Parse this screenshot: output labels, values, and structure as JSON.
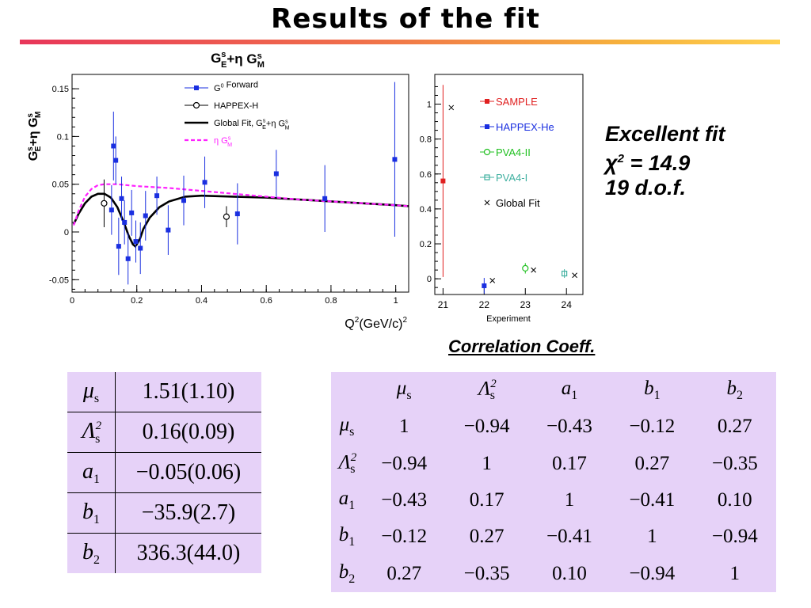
{
  "page": {
    "title": "Results of the fit"
  },
  "fit_summary": {
    "line1": "Excellent fit",
    "chi_symbol": "χ",
    "chi_rest": " = 14.9",
    "chi_exp": "2",
    "line3": "19 d.o.f."
  },
  "correlation_title": "Correlation Coeff.",
  "parameters": {
    "rows": [
      {
        "symbol": "μ",
        "sub": "s",
        "sup": "",
        "value": "1.51(1.10)"
      },
      {
        "symbol": "Λ",
        "sub": "s",
        "sup": "2",
        "value": "0.16(0.09)"
      },
      {
        "symbol": "a",
        "sub": "1",
        "sup": "",
        "value": "−0.05(0.06)"
      },
      {
        "symbol": "b",
        "sub": "1",
        "sup": "",
        "value": "−35.9(2.7)"
      },
      {
        "symbol": "b",
        "sub": "2",
        "sup": "",
        "value": "336.3(44.0)"
      }
    ]
  },
  "correlation": {
    "headers": [
      {
        "symbol": "μ",
        "sub": "s",
        "sup": ""
      },
      {
        "symbol": "Λ",
        "sub": "s",
        "sup": "2"
      },
      {
        "symbol": "a",
        "sub": "1",
        "sup": ""
      },
      {
        "symbol": "b",
        "sub": "1",
        "sup": ""
      },
      {
        "symbol": "b",
        "sub": "2",
        "sup": ""
      }
    ],
    "matrix": [
      [
        "1",
        "−0.94",
        "−0.43",
        "−0.12",
        "0.27"
      ],
      [
        "−0.94",
        "1",
        "0.17",
        "0.27",
        "−0.35"
      ],
      [
        "−0.43",
        "0.17",
        "1",
        "−0.41",
        "0.10"
      ],
      [
        "−0.12",
        "0.27",
        "−0.41",
        "1",
        "−0.94"
      ],
      [
        "0.27",
        "−0.35",
        "0.10",
        "−0.94",
        "1"
      ]
    ]
  },
  "chart_data": [
    {
      "type": "scatter",
      "title": "G_E^s+η G_M^s",
      "ylabel": "G_E^s+η G_M^s",
      "xlabel": "Q²(GeV/c)²",
      "xlim": [
        0,
        1.04
      ],
      "ylim": [
        -0.063,
        0.165
      ],
      "x_ticks": [
        "0",
        "0.2",
        "0.4",
        "0.6",
        "0.8",
        "1"
      ],
      "y_ticks": [
        "-0.05",
        "0",
        "0.05",
        "0.1",
        "0.15"
      ],
      "legend_position": "top-center",
      "series": [
        {
          "name": "G⁰ Forward",
          "kind": "points",
          "marker": "square",
          "color": "#1a2fe0",
          "points": [
            {
              "x": 0.122,
              "y": 0.023,
              "err": 0.026
            },
            {
              "x": 0.128,
              "y": 0.09,
              "err": 0.036
            },
            {
              "x": 0.135,
              "y": 0.075,
              "err": 0.025
            },
            {
              "x": 0.144,
              "y": -0.015,
              "err": 0.03
            },
            {
              "x": 0.153,
              "y": 0.035,
              "err": 0.023
            },
            {
              "x": 0.162,
              "y": 0.01,
              "err": 0.023
            },
            {
              "x": 0.173,
              "y": -0.028,
              "err": 0.027
            },
            {
              "x": 0.184,
              "y": 0.02,
              "err": 0.024
            },
            {
              "x": 0.197,
              "y": -0.01,
              "err": 0.022
            },
            {
              "x": 0.211,
              "y": -0.017,
              "err": 0.027
            },
            {
              "x": 0.227,
              "y": 0.017,
              "err": 0.026
            },
            {
              "x": 0.262,
              "y": 0.038,
              "err": 0.02
            },
            {
              "x": 0.297,
              "y": 0.002,
              "err": 0.026
            },
            {
              "x": 0.345,
              "y": 0.033,
              "err": 0.026
            },
            {
              "x": 0.41,
              "y": 0.052,
              "err": 0.027
            },
            {
              "x": 0.511,
              "y": 0.019,
              "err": 0.032
            },
            {
              "x": 0.631,
              "y": 0.061,
              "err": 0.025
            },
            {
              "x": 0.781,
              "y": 0.035,
              "err": 0.035
            },
            {
              "x": 0.997,
              "y": 0.076,
              "err": 0.081
            }
          ]
        },
        {
          "name": "HAPPEX-H",
          "kind": "points",
          "marker": "open-circle",
          "color": "#000000",
          "points": [
            {
              "x": 0.099,
              "y": 0.03,
              "err": 0.025
            },
            {
              "x": 0.477,
              "y": 0.016,
              "err": 0.011
            }
          ]
        },
        {
          "name": "Global Fit, G_E^s+η G_M^s",
          "kind": "line",
          "color": "#000000",
          "style": "solid",
          "points": [
            [
              0.005,
              0.008
            ],
            [
              0.02,
              0.019
            ],
            [
              0.04,
              0.03
            ],
            [
              0.06,
              0.037
            ],
            [
              0.08,
              0.04
            ],
            [
              0.1,
              0.04
            ],
            [
              0.12,
              0.036
            ],
            [
              0.14,
              0.026
            ],
            [
              0.16,
              0.01
            ],
            [
              0.175,
              -0.004
            ],
            [
              0.188,
              -0.013
            ],
            [
              0.195,
              -0.015
            ],
            [
              0.2,
              -0.013
            ],
            [
              0.21,
              -0.007
            ],
            [
              0.22,
              0.003
            ],
            [
              0.24,
              0.015
            ],
            [
              0.27,
              0.026
            ],
            [
              0.3,
              0.032
            ],
            [
              0.35,
              0.037
            ],
            [
              0.4,
              0.038
            ],
            [
              0.5,
              0.037
            ],
            [
              0.6,
              0.036
            ],
            [
              0.7,
              0.034
            ],
            [
              0.8,
              0.032
            ],
            [
              0.9,
              0.03
            ],
            [
              1.0,
              0.028
            ],
            [
              1.04,
              0.027
            ]
          ]
        },
        {
          "name": "η G_M^s",
          "kind": "line",
          "color": "#ff20ff",
          "style": "dashed",
          "points": [
            [
              0.005,
              0.007
            ],
            [
              0.02,
              0.022
            ],
            [
              0.04,
              0.037
            ],
            [
              0.06,
              0.045
            ],
            [
              0.08,
              0.049
            ],
            [
              0.1,
              0.05
            ],
            [
              0.14,
              0.05
            ],
            [
              0.2,
              0.048
            ],
            [
              0.3,
              0.046
            ],
            [
              0.4,
              0.043
            ],
            [
              0.5,
              0.04
            ],
            [
              0.6,
              0.037
            ],
            [
              0.7,
              0.034
            ],
            [
              0.8,
              0.032
            ],
            [
              0.9,
              0.03
            ],
            [
              1.0,
              0.028
            ],
            [
              1.04,
              0.027
            ]
          ]
        }
      ]
    },
    {
      "type": "scatter",
      "xlabel": "Experiment",
      "xlim": [
        20.8,
        24.4
      ],
      "ylim": [
        -0.09,
        1.17
      ],
      "x_ticks": [
        "21",
        "22",
        "23",
        "24"
      ],
      "y_ticks": [
        "0",
        "0.2",
        "0.4",
        "0.6",
        "0.8",
        "1"
      ],
      "legend_position": "top-right",
      "series": [
        {
          "name": "SAMPLE",
          "marker": "square",
          "color": "#e02020",
          "points": [
            {
              "x": 21,
              "y": 0.56,
              "err": 0.55
            }
          ]
        },
        {
          "name": "HAPPEX-He",
          "marker": "square",
          "color": "#1a2fe0",
          "points": [
            {
              "x": 22,
              "y": -0.04,
              "err": 0.045
            }
          ]
        },
        {
          "name": "PVA4-II",
          "marker": "open-circle",
          "color": "#20c020",
          "points": [
            {
              "x": 23,
              "y": 0.06,
              "err": 0.03
            }
          ]
        },
        {
          "name": "PVA4-I",
          "marker": "open-square",
          "color": "#40b0a0",
          "points": [
            {
              "x": 23.95,
              "y": 0.03,
              "err": 0.025
            }
          ]
        },
        {
          "name": "Global Fit",
          "marker": "cross",
          "color": "#000000",
          "points": [
            {
              "x": 21.2,
              "y": 0.98
            },
            {
              "x": 22.2,
              "y": -0.01
            },
            {
              "x": 23.2,
              "y": 0.05
            },
            {
              "x": 24.2,
              "y": 0.02
            }
          ]
        }
      ]
    }
  ]
}
